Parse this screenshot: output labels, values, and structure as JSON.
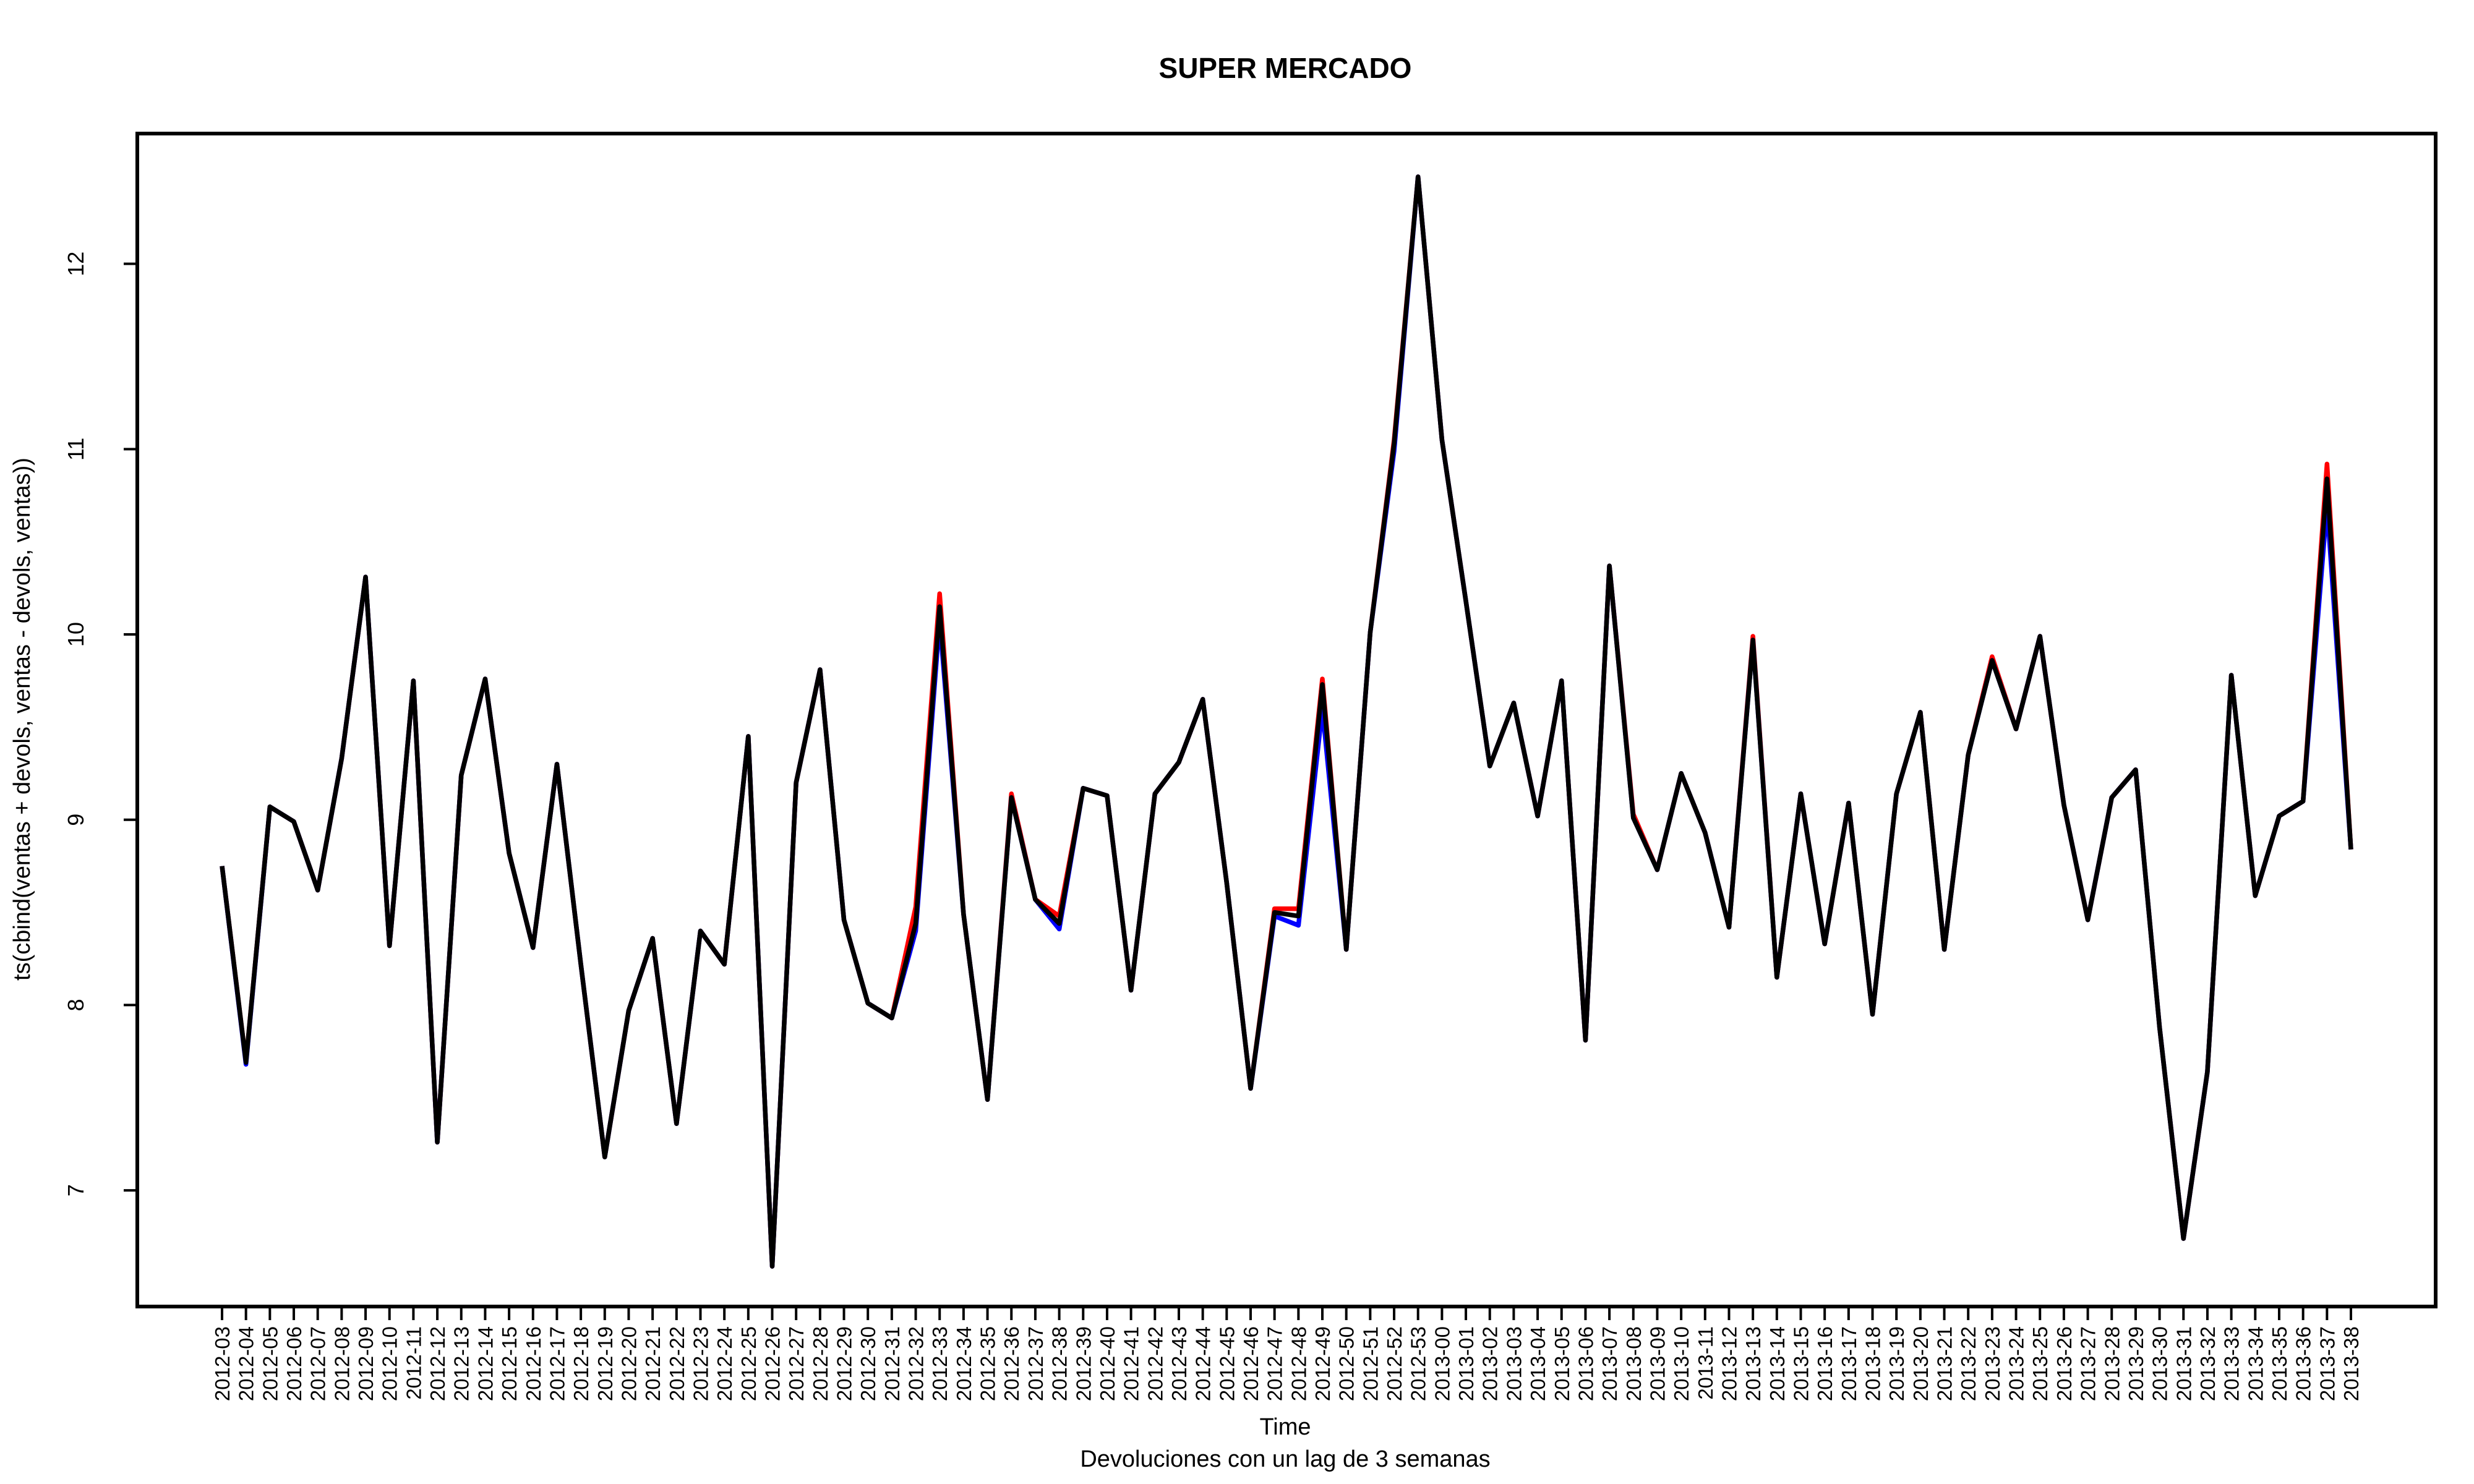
{
  "chart_data": {
    "type": "line",
    "title": "SUPER MERCADO",
    "xlabel": "Time",
    "subtitle": "Devoluciones con un lag de 3 semanas",
    "ylabel": "ts(cbind(ventas + devols, ventas - devols, ventas))",
    "categories": [
      "2012-03",
      "2012-04",
      "2012-05",
      "2012-06",
      "2012-07",
      "2012-08",
      "2012-09",
      "2012-10",
      "2012-11",
      "2012-12",
      "2012-13",
      "2012-14",
      "2012-15",
      "2012-16",
      "2012-17",
      "2012-18",
      "2012-19",
      "2012-20",
      "2012-21",
      "2012-22",
      "2012-23",
      "2012-24",
      "2012-25",
      "2012-26",
      "2012-27",
      "2012-28",
      "2012-29",
      "2012-30",
      "2012-31",
      "2012-32",
      "2012-33",
      "2012-34",
      "2012-35",
      "2012-36",
      "2012-37",
      "2012-38",
      "2012-39",
      "2012-40",
      "2012-41",
      "2012-42",
      "2012-43",
      "2012-44",
      "2012-45",
      "2012-46",
      "2012-47",
      "2012-48",
      "2012-49",
      "2012-50",
      "2012-51",
      "2012-52",
      "2012-53",
      "2013-00",
      "2013-01",
      "2013-02",
      "2013-03",
      "2013-04",
      "2013-05",
      "2013-06",
      "2013-07",
      "2013-08",
      "2013-09",
      "2013-10",
      "2013-11",
      "2013-12",
      "2013-13",
      "2013-14",
      "2013-15",
      "2013-16",
      "2013-17",
      "2013-18",
      "2013-19",
      "2013-20",
      "2013-21",
      "2013-22",
      "2013-23",
      "2013-24",
      "2013-25",
      "2013-26",
      "2013-27",
      "2013-28",
      "2013-29",
      "2013-30",
      "2013-31",
      "2013-32",
      "2013-33",
      "2013-34",
      "2013-35",
      "2013-36",
      "2013-37",
      "2013-38"
    ],
    "series": [
      {
        "color": "#ff0000",
        "values": [
          8.75,
          7.69,
          9.07,
          8.99,
          8.62,
          9.33,
          10.31,
          8.32,
          9.75,
          7.26,
          9.24,
          9.76,
          8.82,
          8.31,
          9.3,
          8.22,
          7.18,
          7.97,
          8.36,
          7.36,
          8.4,
          8.22,
          9.45,
          6.59,
          9.2,
          9.81,
          8.46,
          8.01,
          7.93,
          8.53,
          10.22,
          8.49,
          7.49,
          9.14,
          8.57,
          8.48,
          9.17,
          9.13,
          8.08,
          9.14,
          9.31,
          9.65,
          8.66,
          7.55,
          8.52,
          8.52,
          9.76,
          8.3,
          10.01,
          11.05,
          12.47,
          11.05,
          10.18,
          9.29,
          9.63,
          9.02,
          9.75,
          7.81,
          10.37,
          9.03,
          8.73,
          9.25,
          8.93,
          8.42,
          9.99,
          8.15,
          9.14,
          8.33,
          9.09,
          7.95,
          9.14,
          9.58,
          8.3,
          9.35,
          9.88,
          9.49,
          9.99,
          9.08,
          8.46,
          9.12,
          9.27,
          7.88,
          6.74,
          7.64,
          9.78,
          8.59,
          9.02,
          9.1,
          10.92,
          8.84
        ]
      },
      {
        "color": "#0000ff",
        "values": [
          8.75,
          7.68,
          9.07,
          8.99,
          8.62,
          9.33,
          10.31,
          8.32,
          9.75,
          7.26,
          9.24,
          9.76,
          8.82,
          8.31,
          9.3,
          8.22,
          7.18,
          7.97,
          8.36,
          7.36,
          8.4,
          8.22,
          9.45,
          6.59,
          9.2,
          9.81,
          8.46,
          8.01,
          7.93,
          8.4,
          10.08,
          8.49,
          7.49,
          9.12,
          8.57,
          8.41,
          9.17,
          9.13,
          8.08,
          9.14,
          9.31,
          9.65,
          8.66,
          7.55,
          8.48,
          8.43,
          9.6,
          8.3,
          10.01,
          10.99,
          12.47,
          11.05,
          10.18,
          9.29,
          9.63,
          9.02,
          9.75,
          7.81,
          10.37,
          9.01,
          8.73,
          9.25,
          8.93,
          8.42,
          9.97,
          8.15,
          9.14,
          8.33,
          9.09,
          7.95,
          9.14,
          9.58,
          8.3,
          9.35,
          9.86,
          9.49,
          9.99,
          9.08,
          8.46,
          9.12,
          9.27,
          7.88,
          6.74,
          7.64,
          9.78,
          8.59,
          9.02,
          9.1,
          10.7,
          8.84
        ]
      },
      {
        "color": "#000000",
        "values": [
          8.75,
          7.69,
          9.07,
          8.99,
          8.62,
          9.33,
          10.31,
          8.32,
          9.75,
          7.26,
          9.24,
          9.76,
          8.82,
          8.31,
          9.3,
          8.22,
          7.18,
          7.97,
          8.36,
          7.36,
          8.4,
          8.22,
          9.45,
          6.59,
          9.2,
          9.81,
          8.46,
          8.01,
          7.93,
          8.44,
          10.15,
          8.49,
          7.49,
          9.12,
          8.57,
          8.44,
          9.17,
          9.13,
          8.08,
          9.14,
          9.31,
          9.65,
          8.66,
          7.55,
          8.5,
          8.48,
          9.73,
          8.3,
          10.01,
          11.03,
          12.47,
          11.05,
          10.18,
          9.29,
          9.63,
          9.02,
          9.75,
          7.81,
          10.37,
          9.01,
          8.73,
          9.25,
          8.93,
          8.42,
          9.97,
          8.15,
          9.14,
          8.33,
          9.09,
          7.95,
          9.14,
          9.58,
          8.3,
          9.35,
          9.86,
          9.49,
          9.99,
          9.08,
          8.46,
          9.12,
          9.27,
          7.88,
          6.74,
          7.64,
          9.78,
          8.59,
          9.02,
          9.1,
          10.84,
          8.84
        ]
      }
    ],
    "ylim": [
      6.373,
      12.703
    ],
    "yticks": [
      7,
      8,
      9,
      10,
      11,
      12
    ]
  }
}
